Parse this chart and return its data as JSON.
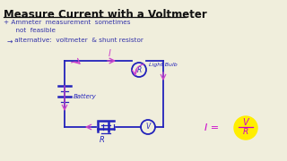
{
  "title": "Measure Current with a Voltmeter",
  "bg_color": "#f0eedc",
  "title_color": "#111111",
  "bullet1": "+ Ammeter  measurement  sometimes",
  "bullet1b": "      not  feasible",
  "bullet2_arrow": "→",
  "bullet2_text": " alternative:  voltmeter  & shunt resistor",
  "formula_color": "#cc00cc",
  "circuit_color": "#2222bb",
  "arrow_color": "#cc44cc",
  "label_battery": "Battery",
  "label_lightbulb": "Light Bulb",
  "highlight_color": "#ffee00",
  "text_color_dark": "#111111",
  "handwriting_color": "#3333aa"
}
